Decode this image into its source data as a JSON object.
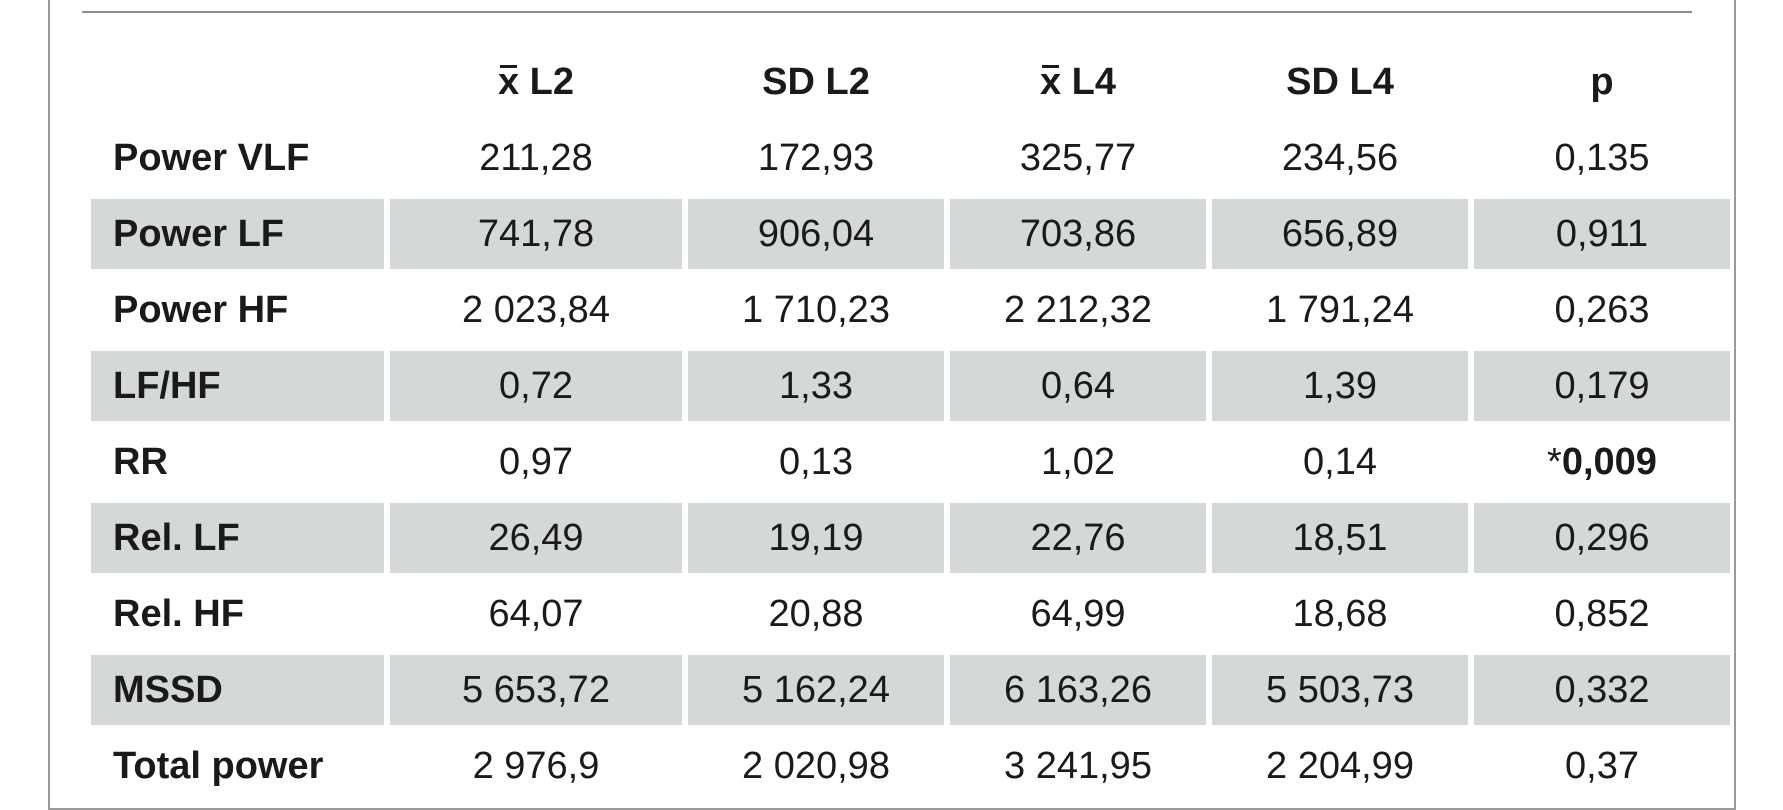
{
  "table": {
    "headers": [
      "x̄ L2",
      "SD L2",
      "x̄ L4",
      "SD L4",
      "p"
    ],
    "header_parts": [
      {
        "pre": "x",
        "post": " L2",
        "overline": true
      },
      {
        "pre": "SD L2",
        "post": "",
        "overline": false
      },
      {
        "pre": "x",
        "post": " L4",
        "overline": true
      },
      {
        "pre": "SD L4",
        "post": "",
        "overline": false
      },
      {
        "pre": "p",
        "post": "",
        "overline": false
      }
    ],
    "rows": [
      {
        "label": "Power VLF",
        "values": [
          "211,28",
          "172,93",
          "325,77",
          "234,56"
        ],
        "p_prefix": "",
        "p": "0,135",
        "p_bold": false,
        "shaded": false
      },
      {
        "label": "Power LF",
        "values": [
          "741,78",
          "906,04",
          "703,86",
          "656,89"
        ],
        "p_prefix": "",
        "p": "0,911",
        "p_bold": false,
        "shaded": true
      },
      {
        "label": "Power HF",
        "values": [
          "2 023,84",
          "1 710,23",
          "2 212,32",
          "1 791,24"
        ],
        "p_prefix": "",
        "p": "0,263",
        "p_bold": false,
        "shaded": false
      },
      {
        "label": "LF/HF",
        "values": [
          "0,72",
          "1,33",
          "0,64",
          "1,39"
        ],
        "p_prefix": "",
        "p": "0,179",
        "p_bold": false,
        "shaded": true
      },
      {
        "label": "RR",
        "values": [
          "0,97",
          "0,13",
          "1,02",
          "0,14"
        ],
        "p_prefix": "*",
        "p": "0,009",
        "p_bold": true,
        "shaded": false
      },
      {
        "label": "Rel. LF",
        "values": [
          "26,49",
          "19,19",
          "22,76",
          "18,51"
        ],
        "p_prefix": "",
        "p": "0,296",
        "p_bold": false,
        "shaded": true
      },
      {
        "label": "Rel. HF",
        "values": [
          "64,07",
          "20,88",
          "64,99",
          "18,68"
        ],
        "p_prefix": "",
        "p": "0,852",
        "p_bold": false,
        "shaded": false
      },
      {
        "label": "MSSD",
        "values": [
          "5 653,72",
          "5 162,24",
          "6 163,26",
          "5 503,73"
        ],
        "p_prefix": "",
        "p": "0,332",
        "p_bold": false,
        "shaded": true
      },
      {
        "label": "Total power",
        "values": [
          "2 976,9",
          "2 020,98",
          "3 241,95",
          "2 204,99"
        ],
        "p_prefix": "",
        "p": "0,37",
        "p_bold": false,
        "shaded": false
      }
    ]
  }
}
